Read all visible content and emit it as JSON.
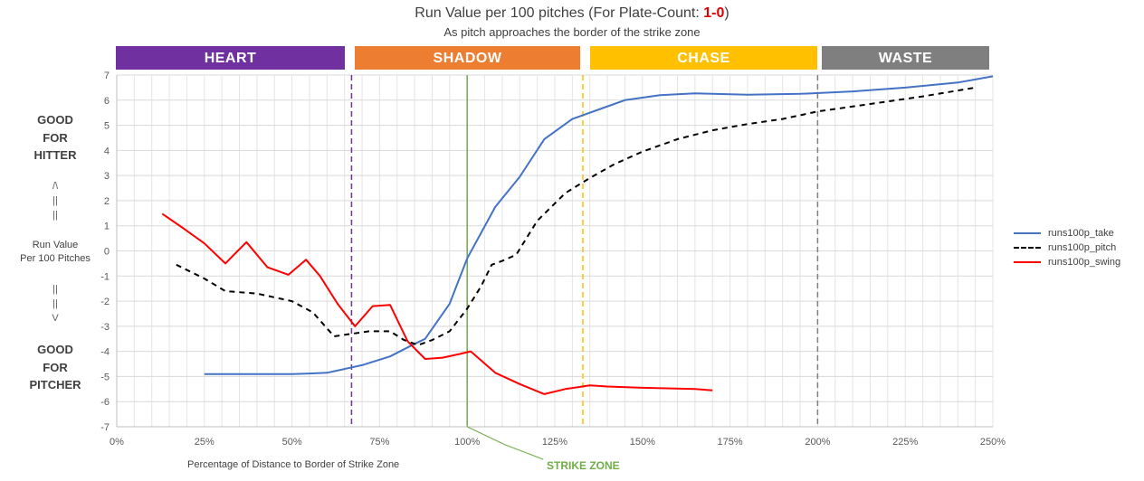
{
  "title": {
    "prefix": "Run Value per 100 pitches (For Plate-Count: ",
    "count": "1-0",
    "suffix": ")"
  },
  "subtitle": "As pitch approaches the border of the strike zone",
  "zones": [
    {
      "label": "HEART",
      "color": "#7030a0"
    },
    {
      "label": "SHADOW",
      "color": "#ed7d31"
    },
    {
      "label": "CHASE",
      "color": "#ffc000"
    },
    {
      "label": "WASTE",
      "color": "#7f7f7f"
    }
  ],
  "side_labels": {
    "good_hitter": [
      "GOOD",
      "FOR",
      "HITTER"
    ],
    "up_arrow": [
      "/\\",
      "||",
      "||"
    ],
    "run_value": [
      "Run Value",
      "Per 100 Pitches"
    ],
    "down_arrow": [
      "||",
      "||",
      "V"
    ],
    "good_pitcher": [
      "GOOD",
      "FOR",
      "PITCHER"
    ]
  },
  "strike_zone_label": "STRIKE ZONE",
  "chart_data": {
    "type": "line",
    "title": "Run Value per 100 pitches (For Plate-Count: 1-0)",
    "subtitle": "As pitch approaches the border of the strike zone",
    "xlabel": "Percentage of Distance to Border of Strike Zone",
    "ylabel": "",
    "xlim": [
      0,
      250
    ],
    "ylim": [
      -7,
      7
    ],
    "x_ticks": [
      0,
      25,
      50,
      75,
      100,
      125,
      150,
      175,
      200,
      225,
      250
    ],
    "x_tick_labels": [
      "0%",
      "25%",
      "50%",
      "75%",
      "100%",
      "125%",
      "150%",
      "175%",
      "200%",
      "225%",
      "250%"
    ],
    "y_ticks": [
      -7,
      -6,
      -5,
      -4,
      -3,
      -2,
      -1,
      0,
      1,
      2,
      3,
      4,
      5,
      6,
      7
    ],
    "grid": true,
    "legend_position": "right",
    "vertical_markers": [
      {
        "x": 67,
        "color": "#7030a0",
        "style": "dashed"
      },
      {
        "x": 100,
        "color": "#70ad47",
        "style": "solid",
        "label": "STRIKE ZONE"
      },
      {
        "x": 133,
        "color": "#ffc000",
        "style": "dashed"
      },
      {
        "x": 200,
        "color": "#7f7f7f",
        "style": "dashed"
      }
    ],
    "series": [
      {
        "name": "runs100p_take",
        "color": "#4472c4",
        "dash": "solid",
        "x": [
          25,
          35,
          45,
          50,
          55,
          60,
          65,
          70,
          78,
          85,
          88,
          95,
          100,
          108,
          115,
          122,
          130,
          138,
          145,
          155,
          165,
          180,
          195,
          210,
          225,
          240,
          250
        ],
        "y": [
          -4.9,
          -4.9,
          -4.9,
          -4.9,
          -4.88,
          -4.85,
          -4.7,
          -4.55,
          -4.2,
          -3.7,
          -3.5,
          -2.1,
          -0.3,
          1.75,
          2.95,
          4.45,
          5.25,
          5.65,
          6.0,
          6.2,
          6.27,
          6.22,
          6.25,
          6.35,
          6.5,
          6.7,
          6.95
        ]
      },
      {
        "name": "runs100p_pitch",
        "color": "#000000",
        "dash": "dashed",
        "x": [
          17,
          25,
          31,
          40,
          50,
          56,
          62,
          67,
          72,
          78,
          82,
          86,
          90,
          95,
          100,
          104,
          107,
          110,
          114,
          120,
          128,
          135,
          142,
          150,
          160,
          170,
          180,
          190,
          200,
          215,
          230,
          245
        ],
        "y": [
          -0.55,
          -1.1,
          -1.6,
          -1.7,
          -2.0,
          -2.45,
          -3.4,
          -3.3,
          -3.2,
          -3.2,
          -3.55,
          -3.75,
          -3.55,
          -3.2,
          -2.3,
          -1.4,
          -0.55,
          -0.4,
          -0.15,
          1.2,
          2.3,
          2.9,
          3.45,
          3.95,
          4.45,
          4.8,
          5.05,
          5.25,
          5.55,
          5.85,
          6.15,
          6.5
        ]
      },
      {
        "name": "runs100p_swing",
        "color": "#ff0000",
        "dash": "solid",
        "x": [
          13,
          19,
          25,
          31,
          37,
          43,
          49,
          54,
          58,
          63,
          68,
          73,
          78,
          83,
          88,
          93,
          98,
          101,
          108,
          115,
          122,
          128,
          135,
          140,
          150,
          165,
          170
        ],
        "y": [
          1.48,
          0.9,
          0.3,
          -0.5,
          0.35,
          -0.65,
          -0.95,
          -0.35,
          -1.0,
          -2.1,
          -3.0,
          -2.2,
          -2.15,
          -3.6,
          -4.3,
          -4.25,
          -4.1,
          -4.0,
          -4.85,
          -5.3,
          -5.7,
          -5.5,
          -5.35,
          -5.4,
          -5.45,
          -5.5,
          -5.55
        ]
      }
    ]
  }
}
